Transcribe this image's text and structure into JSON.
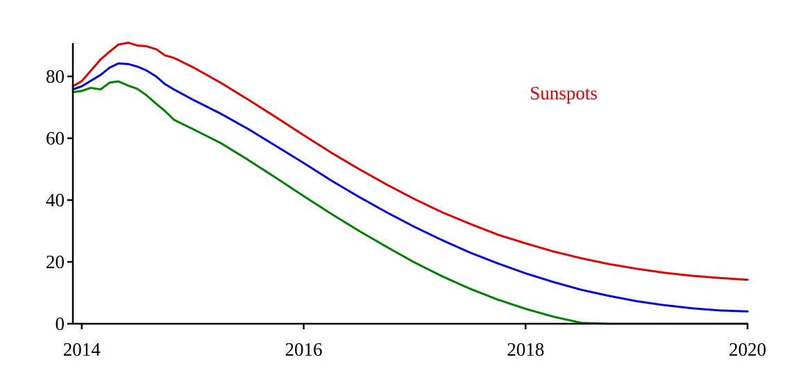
{
  "chart_data": {
    "type": "line",
    "title": "",
    "xlabel": "",
    "ylabel": "",
    "xlim": [
      2013.92,
      2020.0
    ],
    "ylim": [
      0,
      90
    ],
    "grid": false,
    "x_ticks": [
      2014,
      2016,
      2018,
      2020
    ],
    "y_ticks": [
      0,
      20,
      40,
      60,
      80
    ],
    "annotation": {
      "text": "Sunspots",
      "color": "#e00000"
    },
    "series": [
      {
        "color": "#e00000",
        "points": [
          [
            2013.92,
            76.8
          ],
          [
            2014.0,
            78.5
          ],
          [
            2014.17,
            85.5
          ],
          [
            2014.25,
            88.0
          ],
          [
            2014.33,
            90.3
          ],
          [
            2014.42,
            90.9
          ],
          [
            2014.5,
            90.0
          ],
          [
            2014.58,
            89.8
          ],
          [
            2014.67,
            88.8
          ],
          [
            2014.75,
            86.8
          ],
          [
            2014.83,
            86.0
          ],
          [
            2015.0,
            83.0
          ],
          [
            2015.25,
            78.0
          ],
          [
            2015.5,
            72.5
          ],
          [
            2015.75,
            66.8
          ],
          [
            2016.0,
            61.0
          ],
          [
            2016.25,
            55.3
          ],
          [
            2016.5,
            50.0
          ],
          [
            2016.75,
            45.0
          ],
          [
            2017.0,
            40.3
          ],
          [
            2017.25,
            36.0
          ],
          [
            2017.5,
            32.3
          ],
          [
            2017.75,
            28.8
          ],
          [
            2018.0,
            26.0
          ],
          [
            2018.25,
            23.4
          ],
          [
            2018.5,
            21.2
          ],
          [
            2018.75,
            19.3
          ],
          [
            2019.0,
            17.8
          ],
          [
            2019.25,
            16.5
          ],
          [
            2019.5,
            15.5
          ],
          [
            2019.75,
            14.8
          ],
          [
            2020.0,
            14.2
          ]
        ]
      },
      {
        "color": "#0000e0",
        "points": [
          [
            2013.92,
            75.8
          ],
          [
            2014.0,
            76.8
          ],
          [
            2014.17,
            80.5
          ],
          [
            2014.25,
            82.8
          ],
          [
            2014.33,
            84.2
          ],
          [
            2014.42,
            84.0
          ],
          [
            2014.5,
            83.2
          ],
          [
            2014.58,
            82.0
          ],
          [
            2014.67,
            80.0
          ],
          [
            2014.75,
            77.5
          ],
          [
            2014.83,
            75.8
          ],
          [
            2015.0,
            72.5
          ],
          [
            2015.25,
            68.0
          ],
          [
            2015.5,
            63.0
          ],
          [
            2015.75,
            57.5
          ],
          [
            2016.0,
            52.0
          ],
          [
            2016.25,
            46.3
          ],
          [
            2016.5,
            41.0
          ],
          [
            2016.75,
            36.0
          ],
          [
            2017.0,
            31.3
          ],
          [
            2017.25,
            27.0
          ],
          [
            2017.5,
            23.0
          ],
          [
            2017.75,
            19.5
          ],
          [
            2018.0,
            16.3
          ],
          [
            2018.25,
            13.5
          ],
          [
            2018.5,
            11.0
          ],
          [
            2018.75,
            9.0
          ],
          [
            2019.0,
            7.3
          ],
          [
            2019.25,
            6.0
          ],
          [
            2019.5,
            5.0
          ],
          [
            2019.75,
            4.3
          ],
          [
            2020.0,
            4.0
          ]
        ]
      },
      {
        "color": "#008000",
        "points": [
          [
            2013.92,
            74.9
          ],
          [
            2014.0,
            75.3
          ],
          [
            2014.08,
            76.3
          ],
          [
            2014.17,
            75.8
          ],
          [
            2014.25,
            78.0
          ],
          [
            2014.33,
            78.4
          ],
          [
            2014.42,
            77.0
          ],
          [
            2014.5,
            76.0
          ],
          [
            2014.58,
            74.0
          ],
          [
            2014.67,
            71.2
          ],
          [
            2014.75,
            68.8
          ],
          [
            2014.83,
            66.0
          ],
          [
            2015.0,
            63.0
          ],
          [
            2015.25,
            58.5
          ],
          [
            2015.5,
            53.0
          ],
          [
            2015.75,
            47.2
          ],
          [
            2016.0,
            41.3
          ],
          [
            2016.25,
            35.5
          ],
          [
            2016.5,
            30.0
          ],
          [
            2016.75,
            24.8
          ],
          [
            2017.0,
            19.8
          ],
          [
            2017.25,
            15.3
          ],
          [
            2017.5,
            11.3
          ],
          [
            2017.75,
            7.8
          ],
          [
            2018.0,
            4.8
          ],
          [
            2018.25,
            2.3
          ],
          [
            2018.5,
            0.3
          ],
          [
            2018.75,
            0.0
          ],
          [
            2019.0,
            0.0
          ],
          [
            2019.5,
            0.0
          ],
          [
            2020.0,
            0.0
          ]
        ]
      }
    ]
  }
}
